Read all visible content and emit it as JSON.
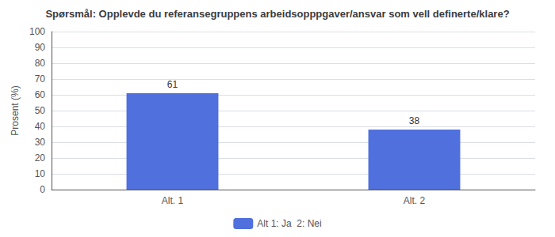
{
  "chart_data": {
    "type": "bar",
    "title": "Spørsmål: Opplevde du referansegruppens arbeidsopppgaver/ansvar som vell definerte/klare?",
    "ylabel": "Prosent (%)",
    "categories": [
      "Alt. 1",
      "Alt. 2"
    ],
    "series": [
      {
        "name": "Alt 1: Ja  2: Nei",
        "values": [
          61,
          38
        ]
      }
    ],
    "ylim": [
      0,
      100
    ],
    "yticks": [
      0,
      10,
      20,
      30,
      40,
      50,
      60,
      70,
      80,
      90,
      100
    ],
    "grid": true,
    "legend": "bottom",
    "data_labels": true
  }
}
